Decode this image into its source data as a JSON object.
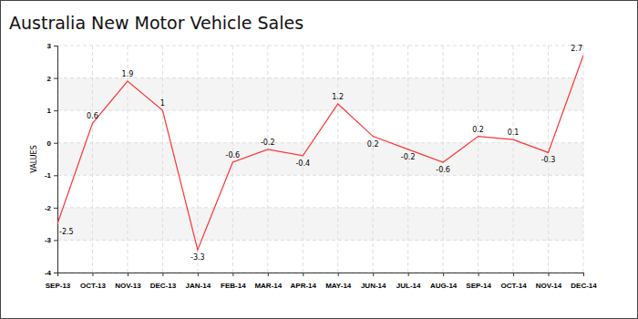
{
  "chart_data": {
    "type": "line",
    "title": "Australia New Motor Vehicle Sales",
    "y_label": "VALUES",
    "categories": [
      "SEP-13",
      "OCT-13",
      "NOV-13",
      "DEC-13",
      "JAN-14",
      "FEB-14",
      "MAR-14",
      "APR-14",
      "MAY-14",
      "JUN-14",
      "JUL-14",
      "AUG-14",
      "SEP-14",
      "OCT-14",
      "NOV-14",
      "DEC-14"
    ],
    "values": [
      -2.5,
      0.6,
      1.9,
      1,
      -3.3,
      -0.6,
      -0.2,
      -0.4,
      1.2,
      0.2,
      -0.2,
      -0.6,
      0.2,
      0.1,
      -0.3,
      2.7
    ],
    "color": "#ff3333",
    "ylim": [
      -4,
      3
    ],
    "yticks": [
      -4,
      -3,
      -2,
      -1,
      0,
      1,
      2,
      3
    ],
    "grid": true,
    "data_labels": true
  }
}
